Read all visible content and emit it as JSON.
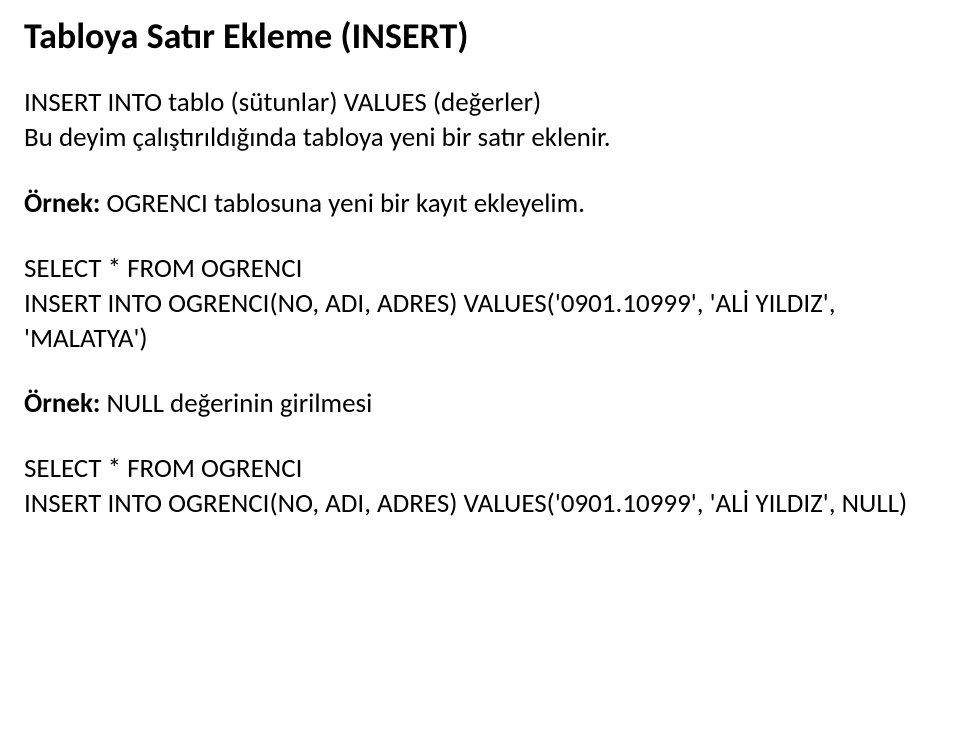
{
  "title": "Tabloya Satır Ekleme (INSERT)",
  "p1_line1": "INSERT INTO tablo (sütunlar) VALUES (değerler)",
  "p1_line2": "Bu deyim çalıştırıldığında tabloya yeni bir satır eklenir.",
  "p2_bold": "Örnek:",
  "p2_rest": " OGRENCI tablosuna yeni bir kayıt ekleyelim.",
  "p3_line1": "SELECT * FROM OGRENCI",
  "p3_line2": "INSERT INTO OGRENCI(NO, ADI, ADRES) VALUES('0901.10999', 'ALİ YILDIZ', 'MALATYA')",
  "p4_bold": "Örnek:",
  "p4_rest": " NULL değerinin girilmesi",
  "p5_line1": "SELECT * FROM OGRENCI",
  "p5_line2": "INSERT INTO OGRENCI(NO, ADI, ADRES) VALUES('0901.10999', 'ALİ YILDIZ', NULL)"
}
